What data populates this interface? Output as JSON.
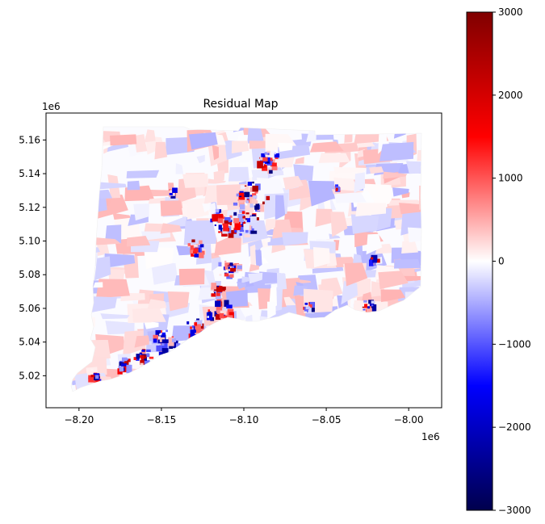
{
  "title": "Residual Map",
  "map": {
    "type": "choropleth",
    "x_axis": {
      "range": [
        -8.22,
        -7.98
      ],
      "ticks": [
        -8.2,
        -8.15,
        -8.1,
        -8.05,
        -8.0
      ],
      "tick_labels": [
        "−8.20",
        "−8.15",
        "−8.10",
        "−8.05",
        "−8.00"
      ],
      "offset_label": "1e6"
    },
    "y_axis": {
      "range": [
        5.001,
        5.176
      ],
      "ticks": [
        5.02,
        5.04,
        5.06,
        5.08,
        5.1,
        5.12,
        5.14,
        5.16
      ],
      "tick_labels": [
        "5.02",
        "5.04",
        "5.06",
        "5.08",
        "5.10",
        "5.12",
        "5.14",
        "5.16"
      ],
      "offset_label": "1e6"
    }
  },
  "colorbar": {
    "colormap": "seismic",
    "range": [
      -3000,
      3000
    ],
    "ticks": [
      -3000,
      -2000,
      -1000,
      0,
      1000,
      2000,
      3000
    ],
    "tick_labels": [
      "−3000",
      "−2000",
      "−1000",
      "0",
      "1000",
      "2000",
      "3000"
    ],
    "colors": {
      "min": "#00004d",
      "low": "#0000ff",
      "mid": "#ffffff",
      "high": "#ff0000",
      "max": "#800000"
    }
  }
}
